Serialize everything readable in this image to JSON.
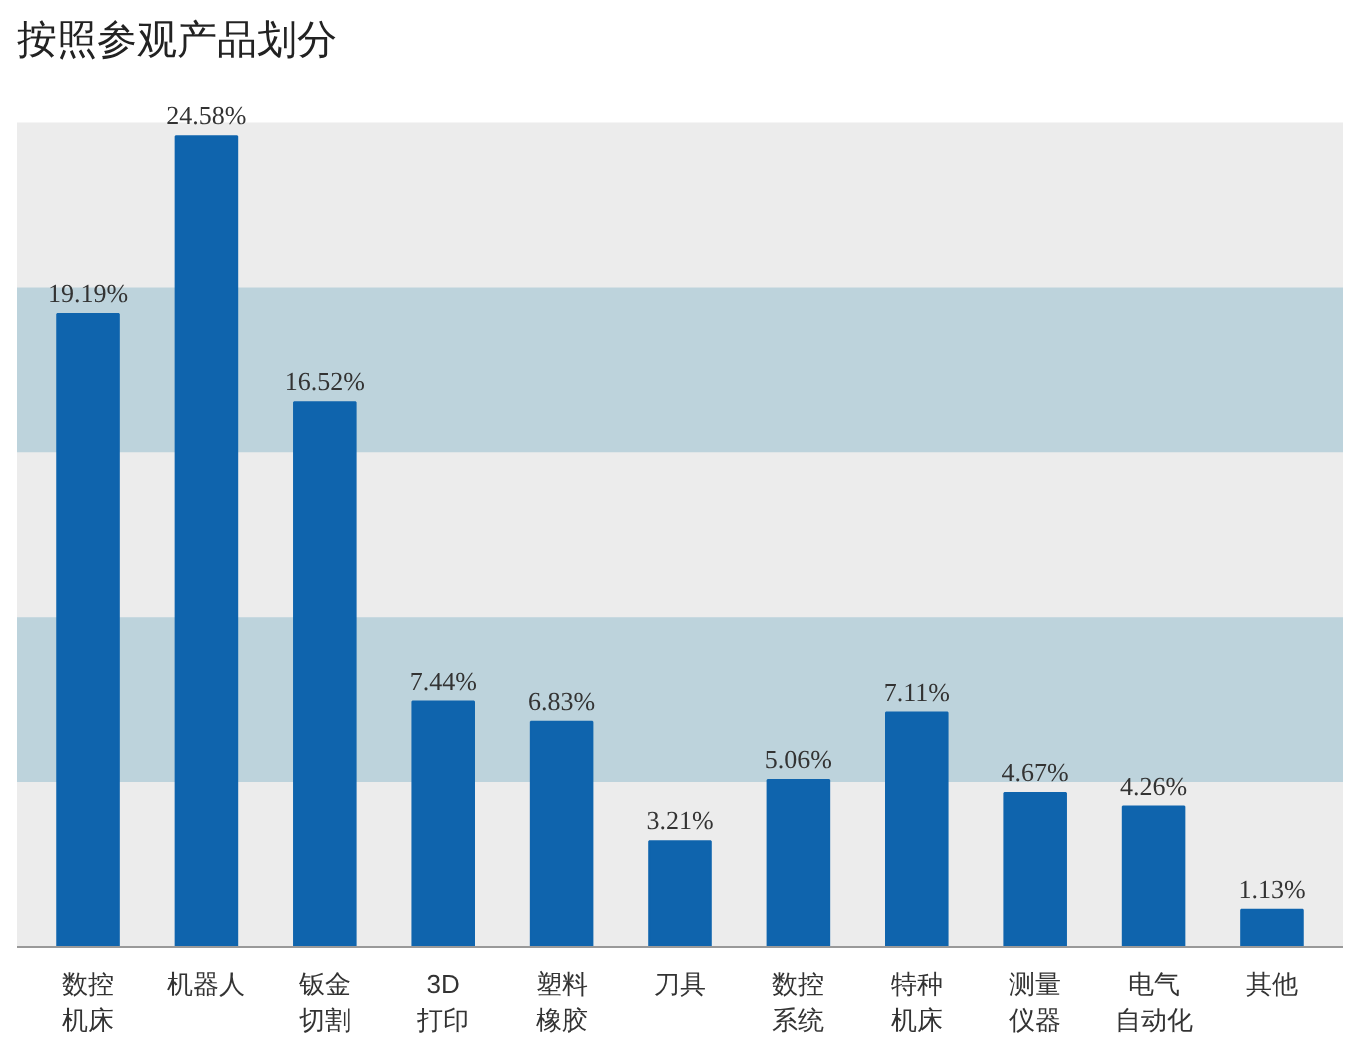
{
  "chart_data": {
    "type": "bar",
    "title": "按照参观产品划分",
    "categories": [
      "数控机床",
      "机器人",
      "钣金切割",
      "3D打印",
      "塑料橡胶",
      "刀具",
      "数控系统",
      "特种机床",
      "测量仪器",
      "电气自动化",
      "其他"
    ],
    "values": [
      19.19,
      24.58,
      16.52,
      7.44,
      6.83,
      3.21,
      5.06,
      7.11,
      4.67,
      4.26,
      1.13
    ],
    "value_labels": [
      "19.19%",
      "24.58%",
      "16.52%",
      "7.44%",
      "6.83%",
      "3.21%",
      "5.06%",
      "7.11%",
      "4.67%",
      "4.26%",
      "1.13%"
    ],
    "color": "#0f64ad",
    "ylim": [
      0,
      25
    ],
    "tick_labels": "x",
    "bands": [
      {
        "axis": "y",
        "from": 5,
        "to": 10,
        "color": "#bdd3dc"
      },
      {
        "axis": "y",
        "from": 15,
        "to": 20,
        "color": "#bdd3dc"
      }
    ],
    "grid": false
  }
}
